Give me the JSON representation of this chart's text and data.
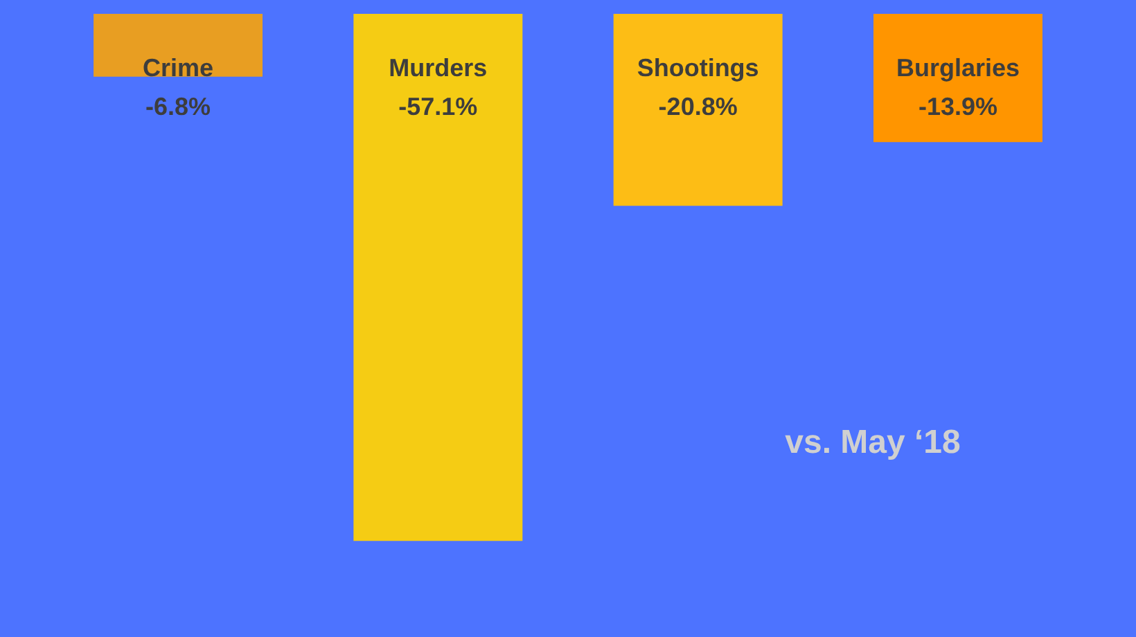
{
  "chart_data": {
    "type": "bar",
    "categories": [
      "Crime",
      "Murders",
      "Shootings",
      "Burglaries"
    ],
    "values": [
      -6.8,
      -57.1,
      -20.8,
      -13.9
    ],
    "value_labels": [
      "-6.8%",
      "-57.1%",
      "-20.8%",
      "-13.9%"
    ],
    "colors": [
      "#e89e22",
      "#f5cc14",
      "#fdbd15",
      "#ff9500"
    ],
    "annotations": [
      "vs. May ‘18"
    ]
  }
}
